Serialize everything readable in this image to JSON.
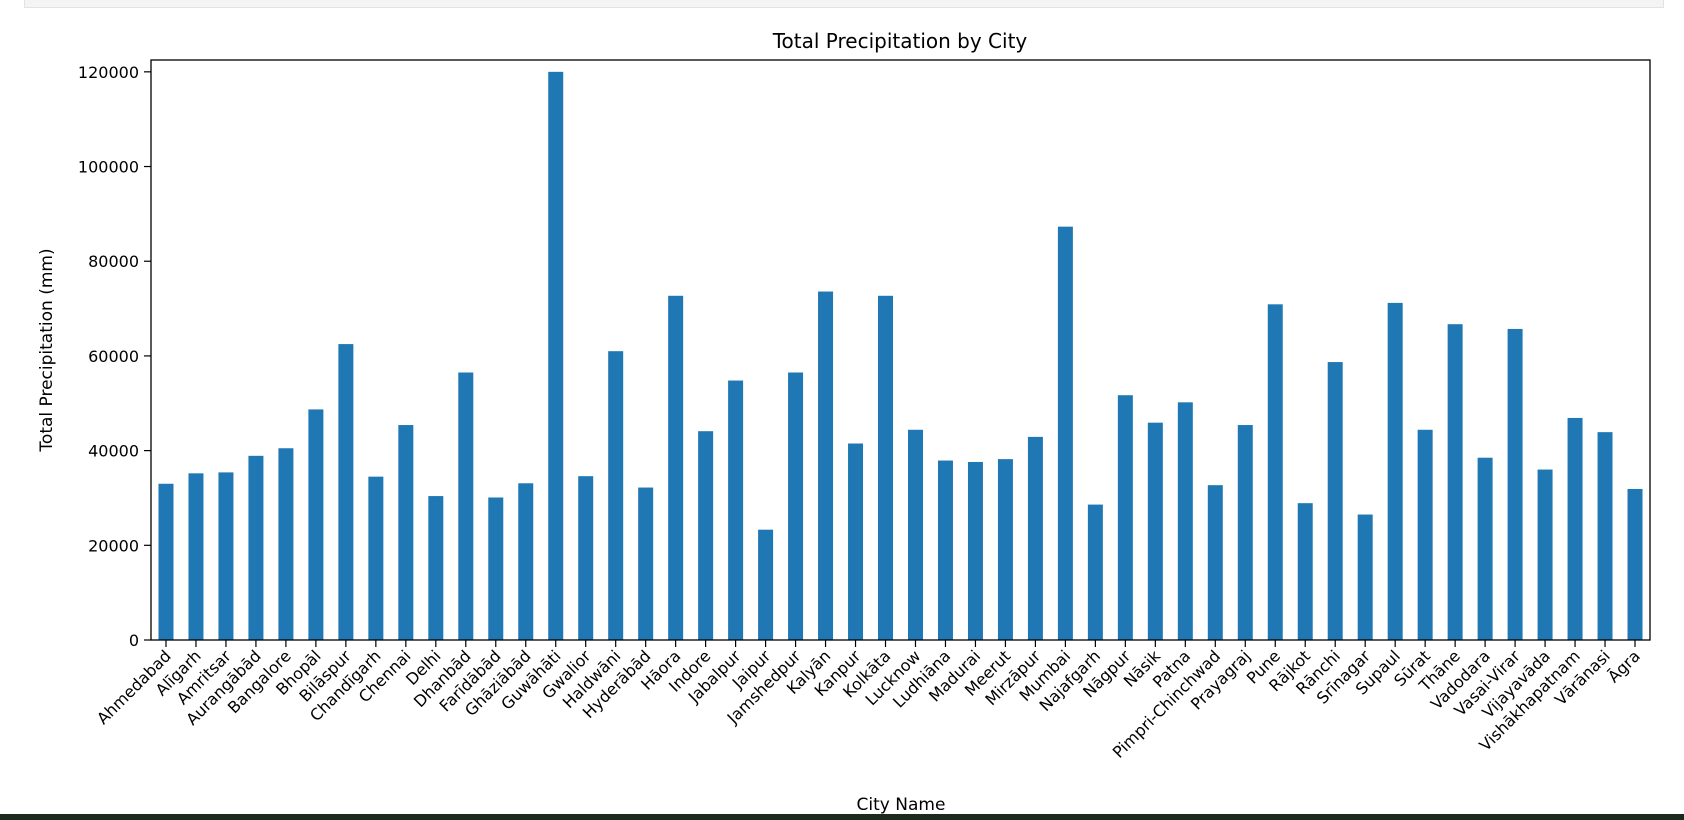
{
  "chart_data": {
    "type": "bar",
    "title": "Total Precipitation by City",
    "xlabel": "City Name",
    "ylabel": "Total Precipitation (mm)",
    "ylim": [
      0,
      122500
    ],
    "yticks": [
      0,
      20000,
      40000,
      60000,
      80000,
      100000,
      120000
    ],
    "grid": false,
    "color": "#1f77b4",
    "categories": [
      "Ahmedabad",
      "Alīgarh",
      "Amritsar",
      "Aurangābād",
      "Bangalore",
      "Bhopāl",
      "Bilāspur",
      "Chandīgarh",
      "Chennai",
      "Delhi",
      "Dhanbād",
      "Farīdābād",
      "Ghāziābād",
      "Guwāhāti",
      "Gwalior",
      "Haldwāni",
      "Hyderābād",
      "Hāora",
      "Indore",
      "Jabalpur",
      "Jaipur",
      "Jamshedpur",
      "Kalyān",
      "Kanpur",
      "Kolkāta",
      "Lucknow",
      "Ludhiāna",
      "Madurai",
      "Meerut",
      "Mirzāpur",
      "Mumbai",
      "Najafgarh",
      "Nāgpur",
      "Nāsik",
      "Patna",
      "Pimpri-Chinchwad",
      "Prayagraj",
      "Pune",
      "Rājkot",
      "Rānchi",
      "Srīnagar",
      "Supaul",
      "Sūrat",
      "Thāne",
      "Vadodara",
      "Vasai-Virar",
      "Vijayavāda",
      "Vishākhapatnam",
      "Vārānasi",
      "Āgra"
    ],
    "values": [
      33000,
      35200,
      35400,
      38900,
      40500,
      48700,
      62500,
      34500,
      45400,
      30400,
      56500,
      30100,
      33100,
      120000,
      34600,
      61000,
      32200,
      72700,
      44100,
      54800,
      23300,
      56500,
      73600,
      41500,
      72700,
      44400,
      37900,
      37600,
      38200,
      42900,
      87300,
      28600,
      51700,
      45900,
      50200,
      32700,
      45400,
      70900,
      28900,
      58700,
      26500,
      71200,
      44400,
      66700,
      38500,
      65700,
      36000,
      46900,
      43900,
      31900
    ]
  }
}
